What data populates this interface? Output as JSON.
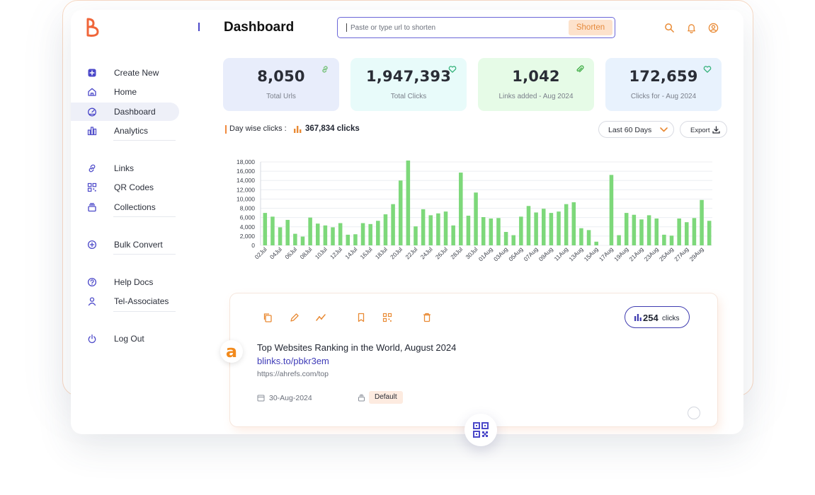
{
  "header": {
    "page_title": "Dashboard",
    "url_placeholder": "Paste or type url to shorten",
    "shorten_label": "Shorten"
  },
  "sidebar": {
    "groups": [
      [
        {
          "label": "Create New",
          "icon": "plus-square-icon"
        },
        {
          "label": "Home",
          "icon": "home-icon"
        },
        {
          "label": "Dashboard",
          "icon": "gauge-icon",
          "active": true
        },
        {
          "label": "Analytics",
          "icon": "bar-chart-icon"
        }
      ],
      [
        {
          "label": "Links",
          "icon": "link-icon"
        },
        {
          "label": "QR Codes",
          "icon": "qr-code-icon"
        },
        {
          "label": "Collections",
          "icon": "stack-icon"
        }
      ],
      [
        {
          "label": "Bulk Convert",
          "icon": "plus-circle-icon"
        }
      ],
      [
        {
          "label": "Help Docs",
          "icon": "help-circle-icon"
        },
        {
          "label": "Tel-Associates",
          "icon": "user-icon"
        }
      ],
      [
        {
          "label": "Log Out",
          "icon": "power-icon"
        }
      ]
    ]
  },
  "stats": [
    {
      "value": "8,050",
      "caption": "Total Urls",
      "bg": "#e8edfb",
      "icon": "link-icon",
      "icon_color": "#7bc47f"
    },
    {
      "value": "1,947,393",
      "caption": "Total Clicks",
      "bg": "#e8fbfa",
      "icon": "heart-icon",
      "icon_color": "#34b27a"
    },
    {
      "value": "1,042",
      "caption": "Links added - Aug 2024",
      "bg": "#e6fbe7",
      "icon": "paperclip-icon",
      "icon_color": "#46b04c"
    },
    {
      "value": "172,659",
      "caption": "Clicks for - Aug 2024",
      "bg": "#e8f2fd",
      "icon": "heart-icon",
      "icon_color": "#34b27a"
    }
  ],
  "chart_header": {
    "label": "Day wise clicks :",
    "total": "367,834 clicks",
    "range": "Last 60 Days",
    "export": "Export"
  },
  "chart_data": {
    "type": "bar",
    "color": "#7dd87a",
    "ylim": [
      0,
      18000
    ],
    "yticks": [
      "0",
      "2,000",
      "4,000",
      "6,000",
      "8,000",
      "10,000",
      "12,000",
      "14,000",
      "16,000",
      "18,000"
    ],
    "tick_labels": [
      "02Jul",
      "04Jul",
      "06Jul",
      "08Jul",
      "10Jul",
      "12Jul",
      "14Jul",
      "16Jul",
      "18Jul",
      "20Jul",
      "22Jul",
      "24Jul",
      "26Jul",
      "28Jul",
      "30Jul",
      "01Aug",
      "03Aug",
      "05Aug",
      "07Aug",
      "09Aug",
      "11Aug",
      "13Aug",
      "15Aug",
      "17Aug",
      "19Aug",
      "21Aug",
      "23Aug",
      "25Aug",
      "27Aug",
      "29Aug"
    ],
    "values": [
      7000,
      6200,
      3900,
      5500,
      2500,
      1900,
      6000,
      4700,
      4300,
      3900,
      4800,
      2300,
      2400,
      4800,
      4600,
      5300,
      6700,
      8900,
      14000,
      18300,
      4100,
      7800,
      6500,
      6900,
      7300,
      4300,
      15700,
      6400,
      11400,
      6100,
      5800,
      5900,
      2900,
      2200,
      6200,
      8500,
      7100,
      7900,
      7000,
      7300,
      8900,
      9300,
      3700,
      3300,
      800,
      0,
      15200,
      2200,
      7000,
      6600,
      5600,
      6500,
      5800,
      2300,
      2100,
      5800,
      5000,
      5900,
      9800,
      5300
    ]
  },
  "link_card": {
    "clicks_value": "254",
    "clicks_unit": "clicks",
    "favicon_letter": "a",
    "title": "Top Websites Ranking in the World, August 2024",
    "short_url": "blinks.to/pbkr3em",
    "original_url": "https://ahrefs.com/top",
    "date": "30-Aug-2024",
    "collection": "Default"
  }
}
